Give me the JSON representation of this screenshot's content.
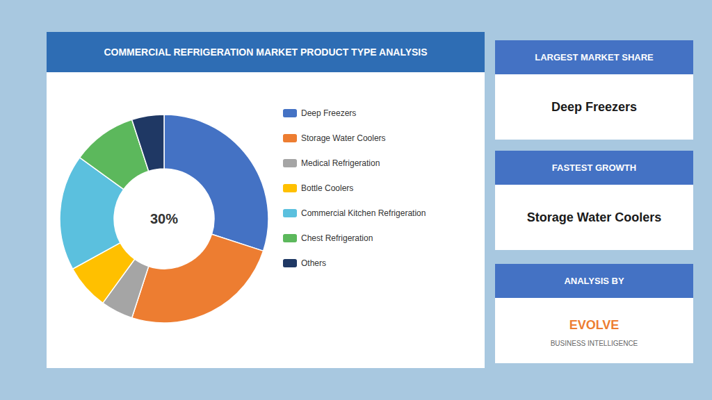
{
  "chart_data": {
    "type": "pie",
    "title": "COMMERCIAL REFRIGERATION MARKET PRODUCT TYPE ANALYSIS",
    "categories": [
      "Deep Freezers",
      "Storage Water Coolers",
      "Medical Refrigeration",
      "Bottle Coolers",
      "Commercial Kitchen Refrigeration",
      "Chest Refrigeration",
      "Others"
    ],
    "values": [
      30,
      25,
      5,
      7,
      18,
      10,
      5
    ],
    "colors": [
      "#4472C4",
      "#ED7D31",
      "#A5A5A5",
      "#FFC000",
      "#5BC0DE",
      "#5CB85C",
      "#1F3864"
    ],
    "legend": "right",
    "annotations": [
      {
        "text": "30%"
      },
      {
        "header": "LARGEST MARKET SHARE",
        "text": "Deep Freezers"
      },
      {
        "header": "FASTEST GROWTH",
        "text": "Storage Water Coolers"
      },
      {
        "header": "ANALYSIS BY",
        "text": "EVOLVE",
        "subtext": "BUSINESS INTELLIGENCE"
      }
    ]
  }
}
